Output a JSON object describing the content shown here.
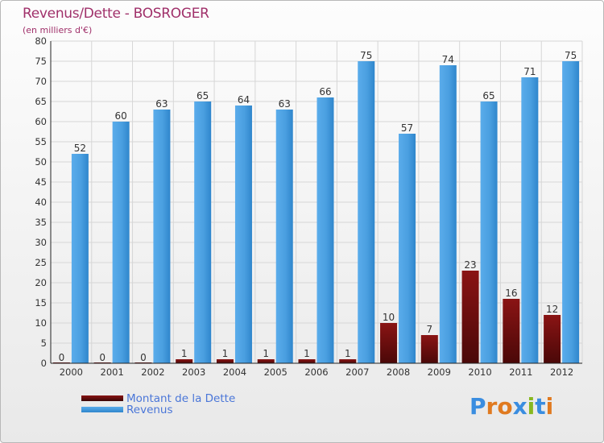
{
  "header": {
    "title": "Revenus/Dette - BOSROGER",
    "subtitle": "(en milliers d'€)"
  },
  "chart_data": {
    "type": "bar",
    "categories": [
      "2000",
      "2001",
      "2002",
      "2003",
      "2004",
      "2005",
      "2006",
      "2007",
      "2008",
      "2009",
      "2010",
      "2011",
      "2012"
    ],
    "series": [
      {
        "name": "Montant de la Dette",
        "color": "#7a1010",
        "values": [
          0,
          0,
          0,
          1,
          1,
          1,
          1,
          1,
          10,
          7,
          23,
          16,
          12
        ]
      },
      {
        "name": "Revenus",
        "color": "#4da3e2",
        "values": [
          52,
          60,
          63,
          65,
          64,
          63,
          66,
          75,
          57,
          74,
          65,
          71,
          75
        ]
      }
    ],
    "ylim": [
      0,
      80
    ],
    "ytick_step": 5,
    "grid": true,
    "legend_position": "bottom-left"
  },
  "legend": {
    "items": [
      {
        "label": "Montant de la Dette",
        "color": "#6b0f0f"
      },
      {
        "label": "Revenus",
        "color": "#4da3e2"
      }
    ]
  },
  "logo": {
    "text": "Proxiti",
    "letter_colors": [
      "#3a8de0",
      "#e07a20",
      "#e07a20",
      "#3a8de0",
      "#88b820",
      "#3a8de0",
      "#e07a20"
    ]
  }
}
